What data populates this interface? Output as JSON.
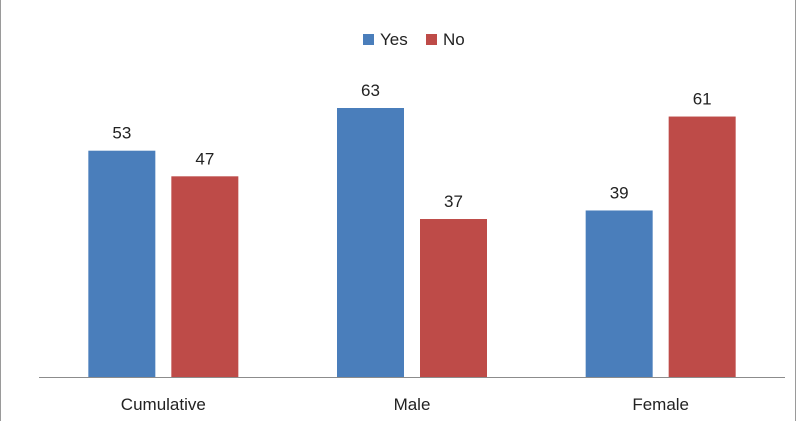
{
  "chart_data": {
    "type": "bar",
    "categories": [
      "Cumulative",
      "Male",
      "Female"
    ],
    "series": [
      {
        "name": "Yes",
        "values": [
          53,
          63,
          39
        ],
        "color": "#4A7EBB"
      },
      {
        "name": "No",
        "values": [
          47,
          37,
          61
        ],
        "color": "#BE4B48"
      }
    ],
    "title": "",
    "xlabel": "",
    "ylabel": "",
    "ylim": [
      0,
      70
    ],
    "grid": false,
    "show_y_axis": false,
    "data_labels": true,
    "legend_position": "top-center"
  }
}
